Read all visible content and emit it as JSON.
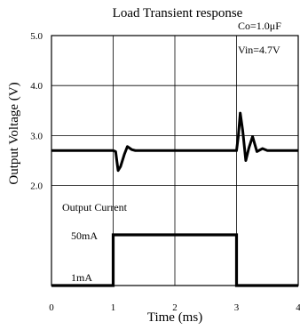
{
  "chart_data": {
    "type": "line",
    "title": "Load Transient response",
    "annotations": {
      "capacitance": "Co=1.0μF",
      "input_voltage": "Vin=4.7V",
      "output_current_label": "Output Current",
      "current_high_label": "50mA",
      "current_low_label": "1mA"
    },
    "xlabel": "Time (ms)",
    "ylabel": "Output Voltage (V)",
    "xlim": [
      0,
      4
    ],
    "ylim": [
      0,
      5
    ],
    "x_ticks": [
      {
        "value": 0,
        "label": "0"
      },
      {
        "value": 1,
        "label": "1"
      },
      {
        "value": 2,
        "label": "2"
      },
      {
        "value": 3,
        "label": "3"
      },
      {
        "value": 4,
        "label": "4"
      }
    ],
    "y_ticks": [
      {
        "value": 2,
        "label": "2.0"
      },
      {
        "value": 3,
        "label": "3.0"
      },
      {
        "value": 4,
        "label": "4.0"
      },
      {
        "value": 5,
        "label": "5.0"
      }
    ],
    "grid": true,
    "series": [
      {
        "role": "output-voltage",
        "color": "#000000",
        "points": [
          [
            0,
            2.7
          ],
          [
            1.0,
            2.7
          ],
          [
            1.04,
            2.68
          ],
          [
            1.08,
            2.3
          ],
          [
            1.12,
            2.38
          ],
          [
            1.18,
            2.62
          ],
          [
            1.23,
            2.78
          ],
          [
            1.3,
            2.72
          ],
          [
            1.36,
            2.7
          ],
          [
            3.0,
            2.7
          ],
          [
            3.03,
            3.0
          ],
          [
            3.06,
            3.45
          ],
          [
            3.1,
            3.1
          ],
          [
            3.15,
            2.5
          ],
          [
            3.2,
            2.75
          ],
          [
            3.26,
            2.98
          ],
          [
            3.33,
            2.68
          ],
          [
            3.42,
            2.74
          ],
          [
            3.5,
            2.7
          ],
          [
            4.0,
            2.7
          ]
        ]
      },
      {
        "role": "output-current",
        "color": "#000000",
        "points": [
          [
            0,
            0
          ],
          [
            1.0,
            0
          ],
          [
            1.0,
            1.0
          ],
          [
            3.0,
            1.0
          ],
          [
            3.0,
            0
          ],
          [
            4.0,
            0
          ]
        ]
      }
    ],
    "current_levels": {
      "low": 0,
      "high": 1.0
    }
  }
}
